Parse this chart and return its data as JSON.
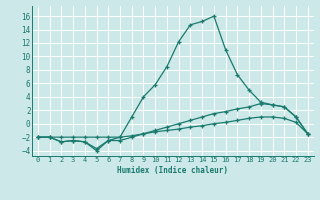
{
  "xlabel": "Humidex (Indice chaleur)",
  "xlim": [
    -0.5,
    23.5
  ],
  "ylim": [
    -4.8,
    17.5
  ],
  "xticks": [
    0,
    1,
    2,
    3,
    4,
    5,
    6,
    7,
    8,
    9,
    10,
    11,
    12,
    13,
    14,
    15,
    16,
    17,
    18,
    19,
    20,
    21,
    22,
    23
  ],
  "yticks": [
    -4,
    -2,
    0,
    2,
    4,
    6,
    8,
    10,
    12,
    14,
    16
  ],
  "bg_color": "#cce8e8",
  "grid_color": "#ffffff",
  "line_color": "#1a7a6e",
  "line1_x": [
    0,
    1,
    2,
    3,
    4,
    5,
    6,
    7,
    8,
    9,
    10,
    11,
    12,
    13,
    14,
    15,
    16,
    17,
    18,
    19,
    20,
    21,
    22,
    23
  ],
  "line1_y": [
    -2,
    -2,
    -2.7,
    -2.5,
    -2.7,
    -3.7,
    -2.5,
    -2,
    1,
    4,
    5.8,
    8.5,
    12.2,
    14.7,
    15.2,
    16,
    11,
    7.3,
    5,
    3.2,
    2.8,
    2.5,
    1,
    -1.5
  ],
  "line2_x": [
    0,
    1,
    2,
    3,
    4,
    5,
    6,
    7,
    8,
    9,
    10,
    11,
    12,
    13,
    14,
    15,
    16,
    17,
    18,
    19,
    20,
    21,
    22,
    23
  ],
  "line2_y": [
    -2,
    -2,
    -2.7,
    -2.5,
    -2.7,
    -4,
    -2.5,
    -2.5,
    -2,
    -1.5,
    -1,
    -0.5,
    0,
    0.5,
    1,
    1.5,
    1.8,
    2.2,
    2.5,
    3,
    2.8,
    2.5,
    1,
    -1.5
  ],
  "line3_x": [
    0,
    1,
    2,
    3,
    4,
    5,
    6,
    7,
    8,
    9,
    10,
    11,
    12,
    13,
    14,
    15,
    16,
    17,
    18,
    19,
    20,
    21,
    22,
    23
  ],
  "line3_y": [
    -2,
    -2,
    -2,
    -2,
    -2,
    -2,
    -2,
    -2,
    -1.8,
    -1.5,
    -1.2,
    -1,
    -0.8,
    -0.5,
    -0.3,
    0,
    0.2,
    0.5,
    0.8,
    1,
    1.0,
    0.8,
    0.2,
    -1.5
  ]
}
